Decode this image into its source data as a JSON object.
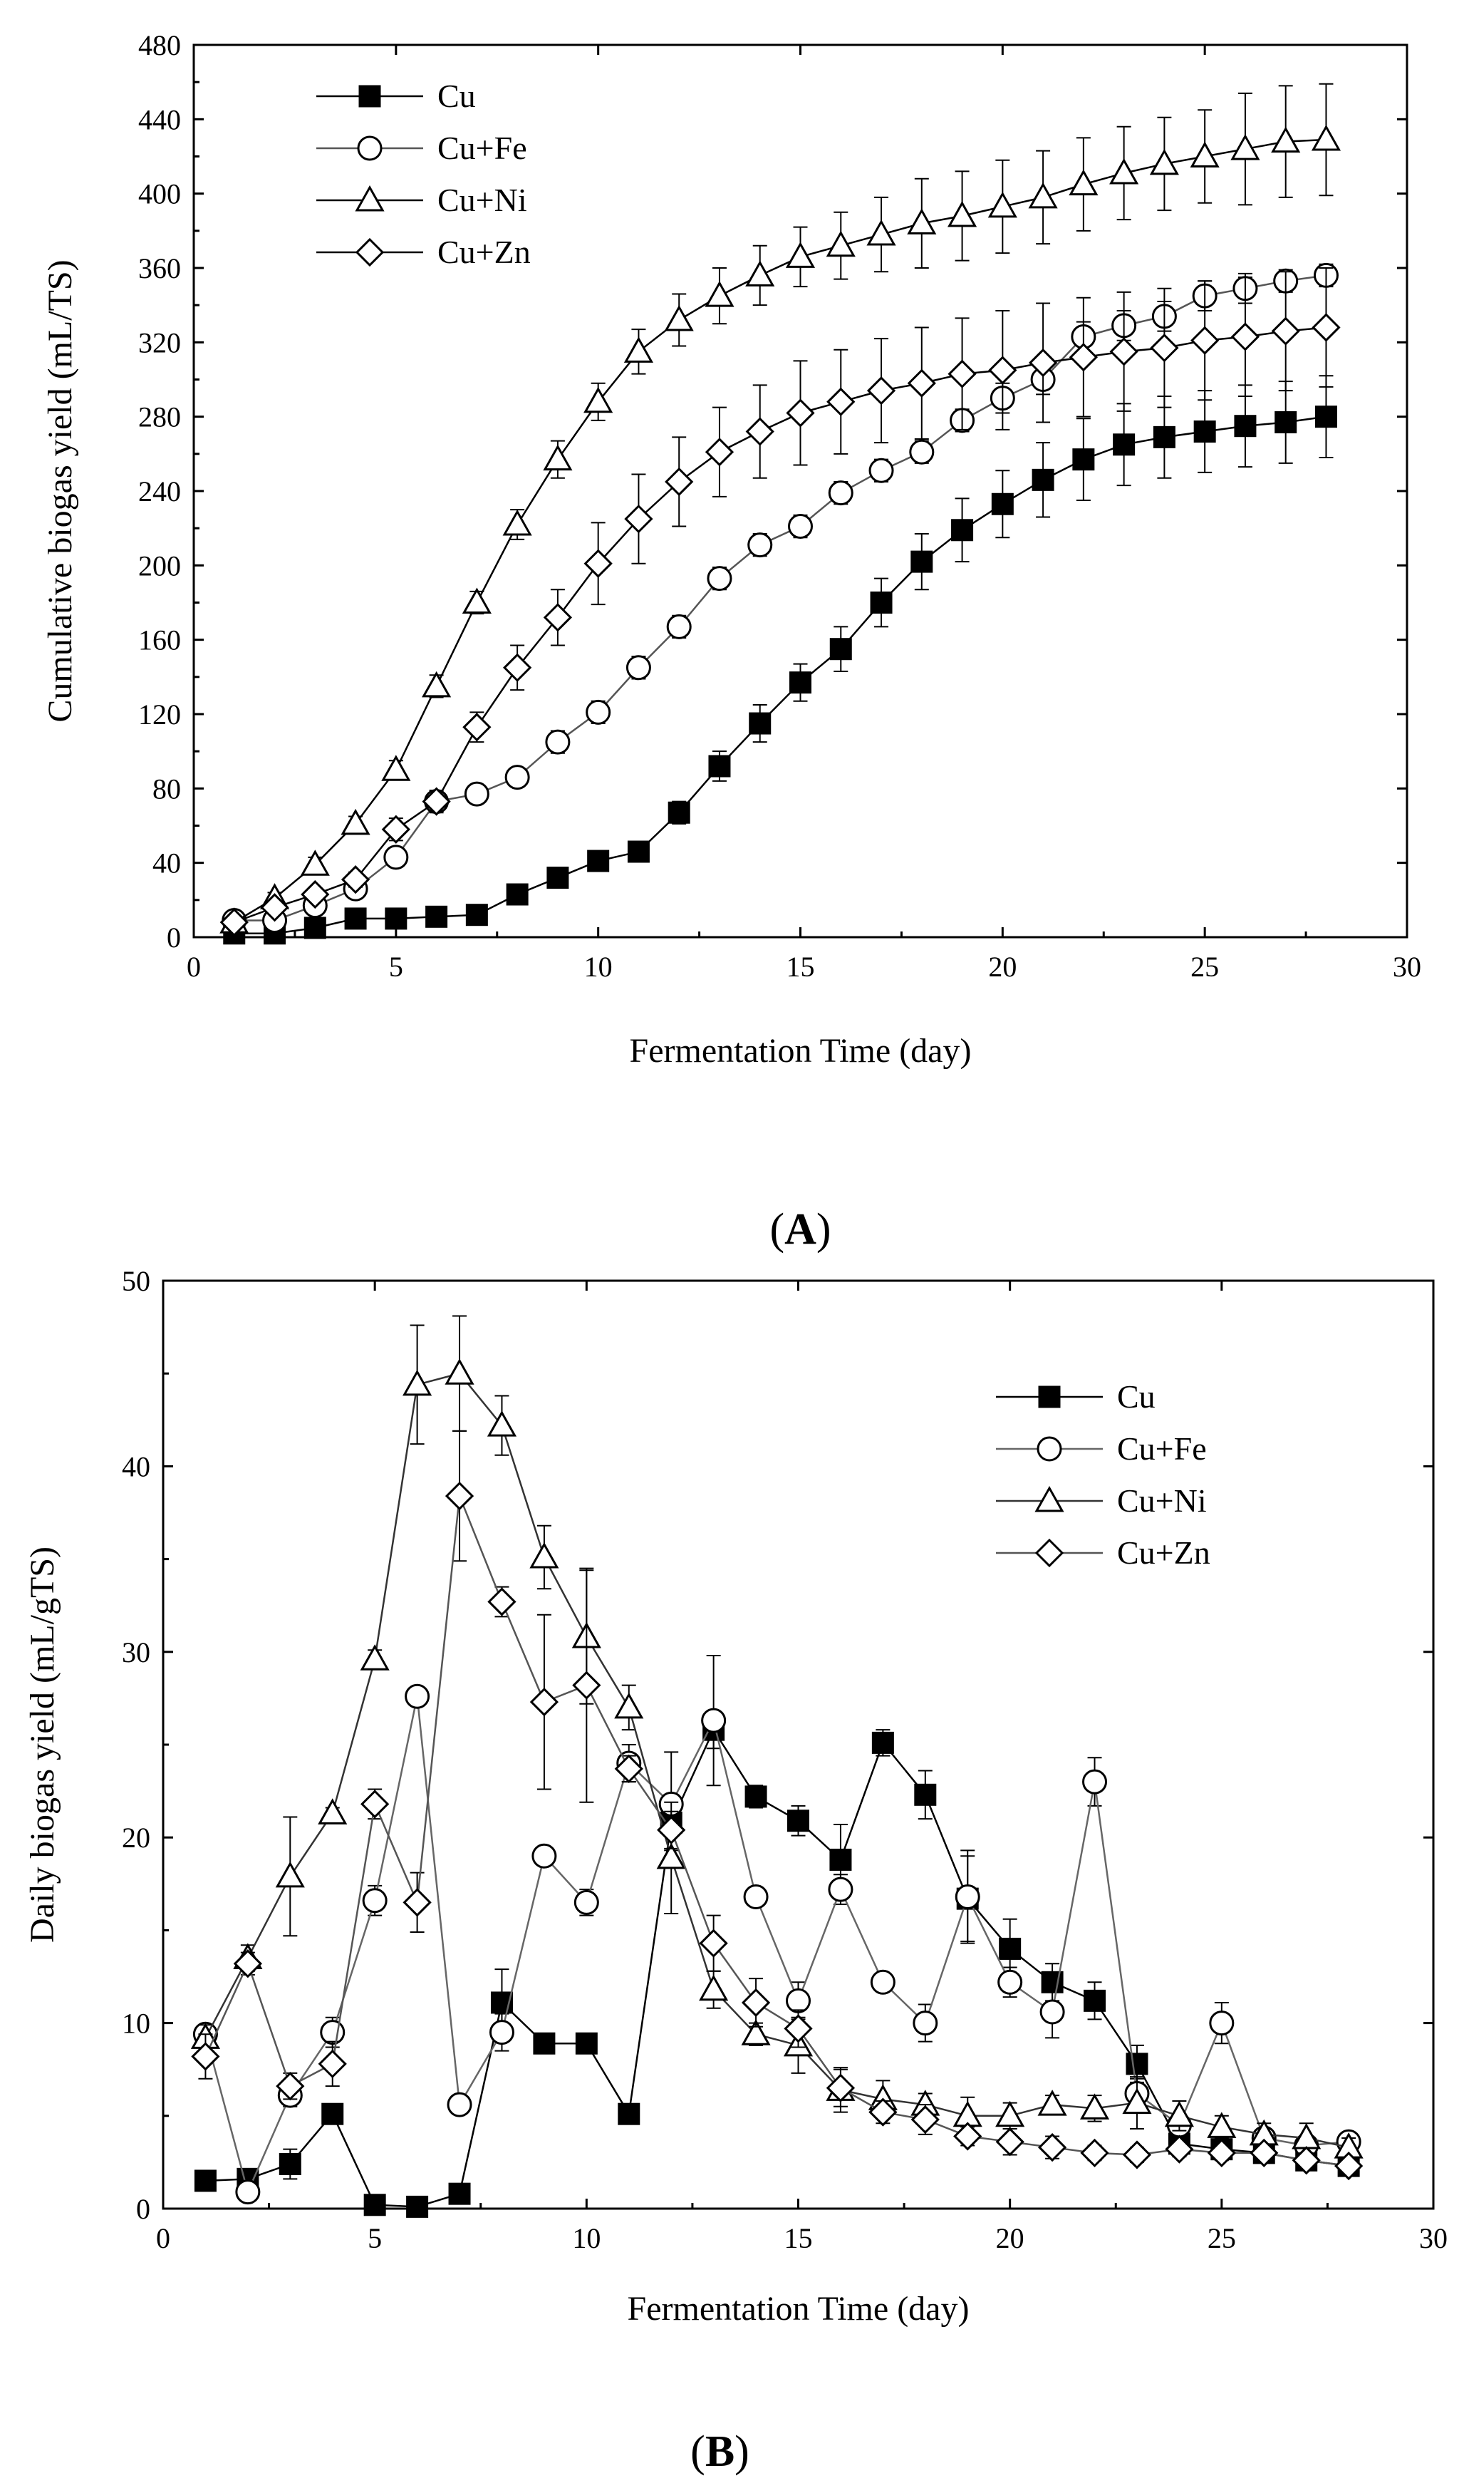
{
  "chart_data": [
    {
      "panel_label": "A",
      "type": "line",
      "title": "",
      "xlabel": "Fermentation Time (day)",
      "ylabel": "Cumulative biogas yield (mL/TS)",
      "xlim": [
        0,
        30
      ],
      "ylim": [
        0,
        480
      ],
      "xticks": [
        0,
        5,
        10,
        15,
        20,
        25,
        30
      ],
      "yticks": [
        0,
        40,
        80,
        120,
        160,
        200,
        240,
        280,
        320,
        360,
        400,
        440,
        480
      ],
      "legend_position": "top-left",
      "x": [
        1,
        2,
        3,
        4,
        5,
        6,
        7,
        8,
        9,
        10,
        11,
        12,
        13,
        14,
        15,
        16,
        17,
        18,
        19,
        20,
        21,
        22,
        23,
        24,
        25,
        26,
        27,
        28
      ],
      "series": [
        {
          "name": "Cu",
          "marker": "square-filled",
          "values": [
            2,
            2,
            5,
            10,
            10,
            11,
            12,
            23,
            32,
            41,
            46,
            67,
            92,
            115,
            137,
            155,
            180,
            202,
            219,
            233,
            246,
            257,
            265,
            269,
            272,
            275,
            277,
            280
          ],
          "errors": [
            2,
            2,
            2,
            3,
            3,
            3,
            3,
            4,
            4,
            4,
            4,
            6,
            8,
            10,
            10,
            12,
            13,
            15,
            17,
            18,
            20,
            22,
            22,
            22,
            22,
            22,
            22,
            22
          ]
        },
        {
          "name": "Cu+Fe",
          "marker": "circle-open",
          "values": [
            9,
            9,
            17,
            26,
            43,
            73,
            77,
            86,
            105,
            121,
            145,
            167,
            193,
            211,
            221,
            239,
            251,
            261,
            278,
            290,
            300,
            323,
            329,
            334,
            345,
            349,
            353,
            356
          ],
          "errors": [
            2,
            2,
            3,
            3,
            4,
            5,
            5,
            5,
            6,
            6,
            6,
            6,
            6,
            6,
            6,
            6,
            6,
            6,
            6,
            8,
            8,
            8,
            8,
            8,
            8,
            8,
            6,
            6
          ]
        },
        {
          "name": "Cu+Ni",
          "marker": "triangle-open",
          "values": [
            8,
            21,
            39,
            61,
            90,
            135,
            180,
            222,
            257,
            288,
            315,
            332,
            345,
            356,
            366,
            372,
            378,
            384,
            388,
            393,
            398,
            405,
            411,
            416,
            420,
            424,
            428,
            429
          ],
          "errors": [
            2,
            3,
            4,
            4,
            5,
            6,
            6,
            8,
            10,
            10,
            12,
            14,
            15,
            16,
            16,
            18,
            20,
            24,
            24,
            25,
            25,
            25,
            25,
            25,
            25,
            30,
            30,
            30
          ]
        },
        {
          "name": "Cu+Zn",
          "marker": "diamond-open",
          "values": [
            8,
            16,
            23,
            31,
            58,
            73,
            113,
            145,
            172,
            201,
            225,
            245,
            261,
            272,
            282,
            288,
            294,
            298,
            303,
            305,
            309,
            312,
            315,
            317,
            321,
            323,
            326,
            328
          ],
          "errors": [
            2,
            3,
            3,
            4,
            6,
            6,
            8,
            12,
            15,
            22,
            24,
            24,
            24,
            25,
            28,
            28,
            28,
            30,
            30,
            32,
            32,
            32,
            32,
            32,
            32,
            32,
            32,
            32
          ]
        }
      ]
    },
    {
      "panel_label": "B",
      "type": "line",
      "title": "",
      "xlabel": "Fermentation Time (day)",
      "ylabel": "Daily biogas yield (mL/gTS)",
      "xlim": [
        0,
        30
      ],
      "ylim": [
        0,
        50
      ],
      "xticks": [
        0,
        5,
        10,
        15,
        20,
        25,
        30
      ],
      "yticks": [
        0,
        10,
        20,
        30,
        40,
        50
      ],
      "legend_position": "top-right",
      "x": [
        1,
        2,
        3,
        4,
        5,
        6,
        7,
        8,
        9,
        10,
        11,
        12,
        13,
        14,
        15,
        16,
        17,
        18,
        19,
        20,
        21,
        22,
        23,
        24,
        25,
        26,
        27,
        28
      ],
      "series": [
        {
          "name": "Cu",
          "marker": "square-filled",
          "values": [
            1.5,
            1.6,
            2.4,
            5.1,
            0.2,
            0.1,
            0.8,
            11.1,
            8.9,
            8.9,
            5.1,
            20.8,
            25.8,
            22.2,
            20.9,
            18.8,
            25.1,
            22.3,
            16.7,
            14.0,
            12.2,
            11.2,
            7.8,
            3.5,
            3.2,
            3.0,
            2.6,
            2.3
          ],
          "errors": [
            0.3,
            0.3,
            0.8,
            0.5,
            0.1,
            0.1,
            0.1,
            1.8,
            0.3,
            0.3,
            0.3,
            1.5,
            1.0,
            0.6,
            0.8,
            1.9,
            0.7,
            1.3,
            2.3,
            1.6,
            1.0,
            1.0,
            1.0,
            0.5,
            0.5,
            0.4,
            0.4,
            0.4
          ]
        },
        {
          "name": "Cu+Fe",
          "marker": "circle-open",
          "values": [
            9.4,
            0.9,
            6.1,
            9.5,
            16.6,
            27.6,
            5.6,
            9.5,
            19.0,
            16.5,
            24.0,
            21.8,
            26.3,
            16.8,
            11.2,
            17.2,
            12.2,
            10.0,
            16.8,
            12.2,
            10.6,
            23.0,
            6.2,
            4.5,
            10.0,
            3.8,
            3.4,
            3.6
          ],
          "errors": [
            0.5,
            0.3,
            0.6,
            0.8,
            0.8,
            0.5,
            0.5,
            1.0,
            0.5,
            0.7,
            1.0,
            2.8,
            3.5,
            0.5,
            1.0,
            0.8,
            0.5,
            1.0,
            2.5,
            0.8,
            1.4,
            1.3,
            0.8,
            0.6,
            1.1,
            0.5,
            0.5,
            0.5
          ]
        },
        {
          "name": "Cu+Ni",
          "marker": "triangle-open",
          "values": [
            9.2,
            13.5,
            17.9,
            21.3,
            29.6,
            44.4,
            45.0,
            42.2,
            35.1,
            30.8,
            27.0,
            18.9,
            11.8,
            9.4,
            8.8,
            6.4,
            5.9,
            5.6,
            5.0,
            5.0,
            5.6,
            5.4,
            5.7,
            5.0,
            4.4,
            4.0,
            3.8,
            3.3
          ],
          "errors": [
            0.7,
            0.7,
            3.2,
            0.3,
            0.5,
            3.2,
            3.1,
            1.6,
            1.7,
            3.6,
            1.2,
            3.0,
            1.0,
            0.6,
            1.5,
            1.2,
            1.0,
            0.6,
            1.0,
            0.7,
            0.5,
            0.7,
            1.4,
            0.8,
            0.6,
            0.6,
            0.8,
            0.5
          ]
        },
        {
          "name": "Cu+Zn",
          "marker": "diamond-open",
          "values": [
            8.2,
            13.2,
            6.6,
            7.8,
            21.8,
            16.5,
            38.4,
            32.7,
            27.3,
            28.2,
            23.7,
            20.4,
            14.3,
            11.1,
            9.7,
            6.5,
            5.2,
            4.8,
            3.9,
            3.6,
            3.3,
            3.0,
            2.9,
            3.2,
            3.0,
            3.0,
            2.6,
            2.3
          ],
          "errors": [
            1.2,
            0.6,
            0.7,
            1.2,
            0.8,
            1.6,
            3.5,
            0.8,
            4.7,
            6.3,
            0.7,
            1.0,
            1.5,
            1.3,
            1.0,
            1.0,
            0.6,
            0.8,
            0.5,
            0.7,
            0.6,
            0.4,
            0.4,
            0.4,
            0.4,
            0.4,
            0.4,
            0.4
          ]
        }
      ]
    }
  ]
}
